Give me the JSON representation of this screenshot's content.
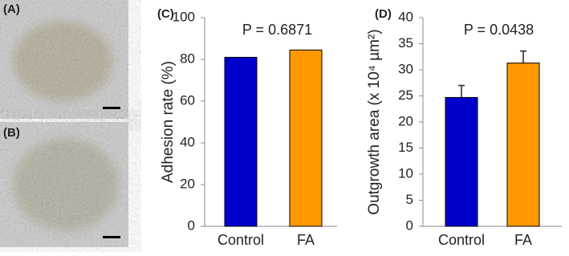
{
  "panels": [
    {
      "label": "(A)"
    },
    {
      "label": "(B)"
    }
  ],
  "chart_data": [
    {
      "type": "bar",
      "panel_label": "(C)",
      "y_label": "Adhesion rate (%)",
      "annotation": "P = 0.6871",
      "categories": [
        "Control",
        "FA"
      ],
      "values": [
        81,
        84.5
      ],
      "colors": [
        "#0000cc",
        "#ff9900"
      ],
      "ylim": [
        0,
        100
      ],
      "yticks": [
        0,
        20,
        40,
        60,
        80,
        100
      ]
    },
    {
      "type": "bar",
      "panel_label": "(D)",
      "y_label": "Outgrowth area (x 10⁴ µm²)",
      "annotation": "P = 0.0438",
      "categories": [
        "Control",
        "FA"
      ],
      "values": [
        24.7,
        31.3
      ],
      "errors": [
        2.3,
        2.3
      ],
      "colors": [
        "#0000cc",
        "#ff9900"
      ],
      "ylim": [
        0,
        40
      ],
      "yticks": [
        0,
        5,
        10,
        15,
        20,
        25,
        30,
        35,
        40
      ]
    }
  ]
}
